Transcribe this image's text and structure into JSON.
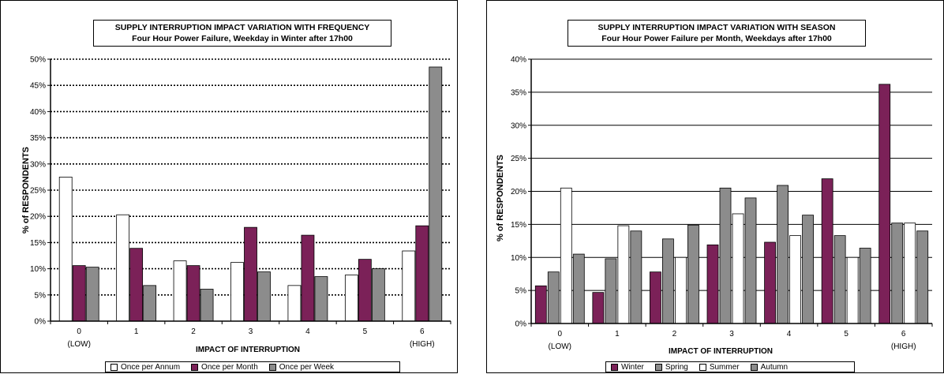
{
  "chart_data": [
    {
      "type": "bar",
      "title": "SUPPLY INTERRUPTION IMPACT VARIATION WITH FREQUENCY",
      "subtitle": "Four Hour Power Failure, Weekday in Winter after 17h00",
      "xlabel": "IMPACT OF INTERRUPTION",
      "ylabel": "% of RESPONDENTS",
      "ylim": [
        0,
        50
      ],
      "ytick_step": 5,
      "categories": [
        "0",
        "1",
        "2",
        "3",
        "4",
        "5",
        "6"
      ],
      "category_sublabels": [
        "(LOW)",
        "",
        "",
        "",
        "",
        "",
        "(HIGH)"
      ],
      "series": [
        {
          "name": "Once per Annum",
          "color": "#ffffff",
          "values": [
            27.5,
            20.3,
            11.5,
            11.2,
            6.8,
            8.8,
            13.4
          ]
        },
        {
          "name": "Once per Month",
          "color": "#7b2158",
          "values": [
            10.6,
            13.9,
            10.6,
            17.9,
            16.4,
            11.8,
            18.2
          ]
        },
        {
          "name": "Once per Week",
          "color": "#8c8c8c",
          "values": [
            10.3,
            6.8,
            6.1,
            9.4,
            8.5,
            10.0,
            48.5
          ]
        }
      ],
      "grid": "dotted",
      "legend": "bottom"
    },
    {
      "type": "bar",
      "title": "SUPPLY INTERRUPTION IMPACT VARIATION WITH SEASON",
      "subtitle": "Four Hour Power Failure per Month, Weekdays after 17h00",
      "xlabel": "IMPACT OF INTERRUPTION",
      "ylabel": "% of RESPONDENTS",
      "ylim": [
        0,
        40
      ],
      "ytick_step": 5,
      "categories": [
        "0",
        "1",
        "2",
        "3",
        "4",
        "5",
        "6"
      ],
      "category_sublabels": [
        "(LOW)",
        "",
        "",
        "",
        "",
        "",
        "(HIGH)"
      ],
      "series": [
        {
          "name": "Winter",
          "color": "#7b2158",
          "values": [
            5.7,
            4.7,
            7.8,
            11.9,
            12.3,
            21.9,
            36.2
          ]
        },
        {
          "name": "Spring",
          "color": "#8c8c8c",
          "values": [
            7.8,
            9.8,
            12.8,
            20.5,
            20.9,
            13.3,
            15.2
          ]
        },
        {
          "name": "Summer",
          "color": "#ffffff",
          "values": [
            20.5,
            14.8,
            10.0,
            16.6,
            13.3,
            10.0,
            15.2
          ]
        },
        {
          "name": "Autumn",
          "color": "#8c8c8c",
          "values": [
            10.5,
            14.0,
            14.9,
            19.0,
            16.4,
            11.4,
            14.0
          ]
        }
      ],
      "grid": "solid",
      "legend": "bottom"
    }
  ]
}
